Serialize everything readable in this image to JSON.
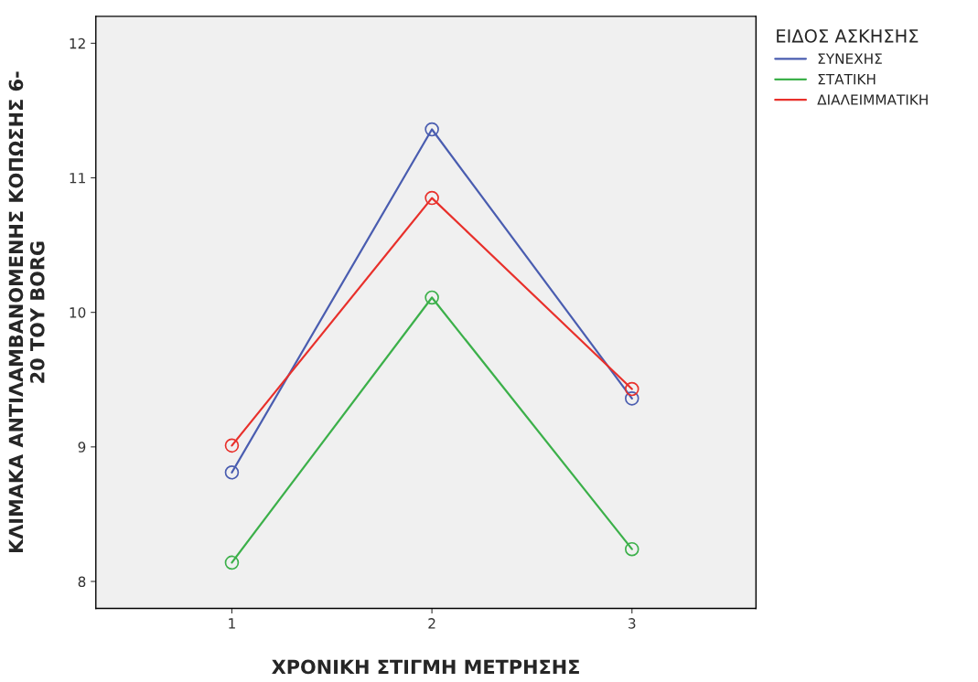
{
  "chart_data": {
    "type": "line",
    "xlabel": "ΧΡΟΝΙΚΗ ΣΤΙΓΜΗ ΜΕΤΡΗΣΗΣ",
    "ylabel": "ΚΛΙΜΑΚΑ ΑΝΤΙΛΑΜΒΑΝΟΜΕΝΗΣ ΚΟΠΩΣΗΣ 6-\n20 ΤΟΥ BORG",
    "legend_title": "ΕΙΔΟΣ ΑΣΚΗΣΗΣ",
    "x": [
      1,
      2,
      3
    ],
    "xlim": [
      0.32,
      3.62
    ],
    "xticks": [
      1,
      2,
      3
    ],
    "ylim": [
      7.8,
      12.2
    ],
    "yticks": [
      8,
      9,
      10,
      11,
      12
    ],
    "series": [
      {
        "name": "ΣΥΝΕΧΗΣ",
        "color": "#4a5db0",
        "values": [
          8.81,
          11.36,
          9.36
        ]
      },
      {
        "name": "ΣΤΑΤΙΚΗ",
        "color": "#3cb04a",
        "values": [
          8.14,
          10.11,
          8.24
        ]
      },
      {
        "name": "ΔΙΑΛΕΙΜΜΑΤΙΚΗ",
        "color": "#e8302b",
        "values": [
          9.01,
          10.85,
          9.43
        ]
      }
    ],
    "marker": "circle",
    "line_style": "solid",
    "grid": false,
    "legend": "top right"
  }
}
